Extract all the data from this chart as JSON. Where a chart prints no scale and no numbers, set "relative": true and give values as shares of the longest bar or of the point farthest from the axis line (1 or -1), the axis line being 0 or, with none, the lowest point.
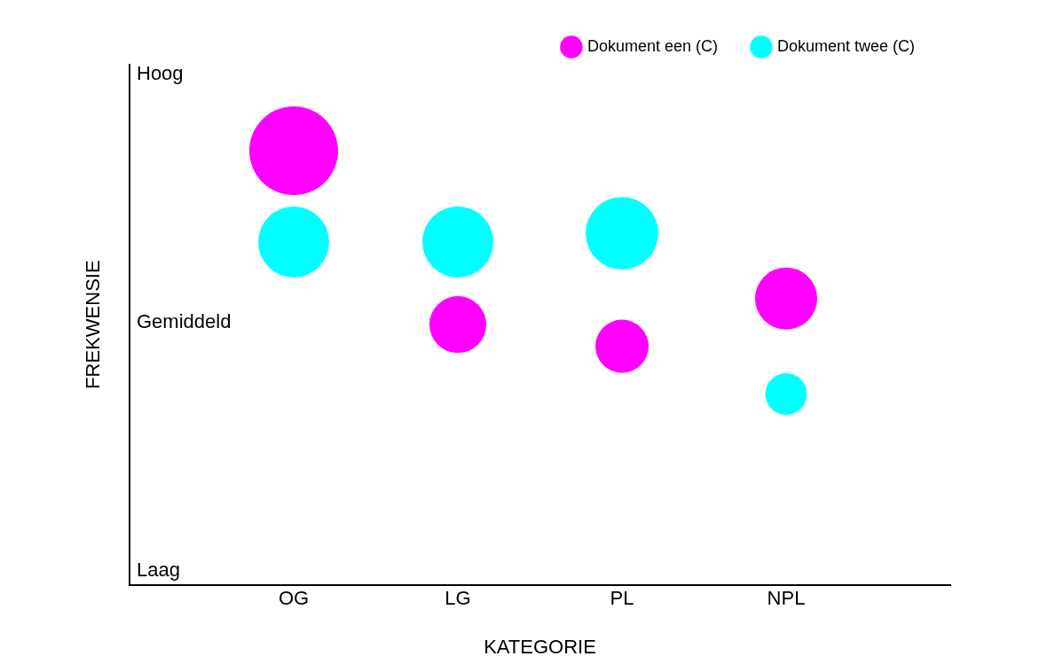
{
  "chart_data": {
    "type": "bubble",
    "xlabel": "KATEGORIE",
    "ylabel": "FREKWENSIE",
    "categories": [
      "OG",
      "LG",
      "PL",
      "NPL"
    ],
    "relative": true,
    "annotations": [
      "Hoog",
      "Gemiddeld",
      "Laag"
    ],
    "grid": false,
    "legend": "top right",
    "marker": "circle",
    "series": [
      {
        "name": "Dokument een (C)",
        "color": "#ff00ff",
        "values": [
          1,
          0.6,
          0.55,
          0.66
        ],
        "sizes": [
          1,
          0.41,
          0.36,
          0.49
        ]
      },
      {
        "name": "Dokument twee (C)",
        "color": "#00ffff",
        "values": [
          0.79,
          0.79,
          0.81,
          0.44
        ],
        "sizes": [
          0.64,
          0.64,
          0.67,
          0.22
        ]
      }
    ]
  }
}
